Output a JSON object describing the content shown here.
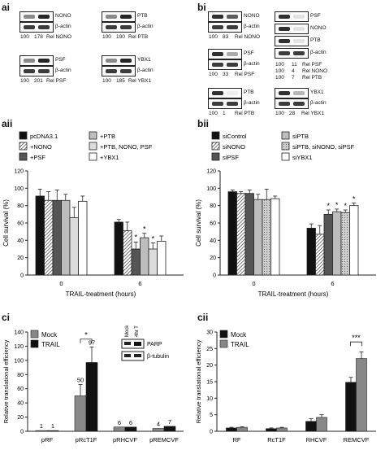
{
  "labels": {
    "ai": "ai",
    "bi": "bi",
    "aii": "aii",
    "bii": "bii",
    "ci": "ci",
    "cii": "cii"
  },
  "ai": {
    "blots": [
      {
        "rows": [
          "NONO",
          "β-actin"
        ],
        "rel": [
          "100",
          "178",
          "Rel NONO"
        ]
      },
      {
        "rows": [
          "PTB",
          "β-actin"
        ],
        "rel": [
          "100",
          "190",
          "Rel PTB"
        ]
      },
      {
        "rows": [
          "PSF",
          "β-actin"
        ],
        "rel": [
          "100",
          "201",
          "Rel PSF"
        ]
      },
      {
        "rows": [
          "YBX1",
          "β-actin"
        ],
        "rel": [
          "100",
          "185",
          "Rel YBX1"
        ]
      }
    ]
  },
  "bi": {
    "blots_left": [
      {
        "rows": [
          "NONO",
          "β-actin"
        ],
        "rel": [
          "100",
          "83",
          "Rel NONO"
        ]
      },
      {
        "rows": [
          "PSF",
          "β-actin"
        ],
        "rel": [
          "100",
          "33",
          "Rel PSF"
        ]
      },
      {
        "rows": [
          "PTB",
          "β-actin"
        ],
        "rel": [
          "100",
          "1",
          "Rel PTB"
        ]
      }
    ],
    "blot_right_rows": [
      "PSF",
      "NONO",
      "PTB",
      "β-actin"
    ],
    "blot_right_rel": [
      [
        "100",
        "11",
        "Rel PSF"
      ],
      [
        "100",
        "4",
        "Rel NONO"
      ],
      [
        "100",
        "7",
        "Rel PTB"
      ]
    ],
    "blot_ybx1": {
      "rows": [
        "YBX1",
        "β-actin"
      ],
      "rel": [
        "100",
        "28",
        "Rel YBX1"
      ]
    }
  },
  "chart_data": [
    {
      "panel": "aii",
      "type": "bar",
      "x": [
        "0",
        "6"
      ],
      "xlabel": "TRAIL-treatment (hours)",
      "ylabel": "Cell survival (%)",
      "ylim": [
        0,
        120
      ],
      "yticks": [
        "0",
        "20",
        "40",
        "60",
        "80",
        "100",
        "120"
      ],
      "legend": [
        "pcDNA3.1",
        "+NONO",
        "+PSF",
        "+PTB",
        "+PTB, NONO, PSF",
        "+YBX1"
      ],
      "series": [
        {
          "name": "pcDNA3.1",
          "values": [
            91,
            61
          ],
          "err": [
            8,
            3
          ]
        },
        {
          "name": "+NONO",
          "values": [
            86,
            51
          ],
          "err": [
            10,
            10
          ]
        },
        {
          "name": "+PSF",
          "values": [
            86,
            30
          ],
          "err": [
            12,
            8
          ]
        },
        {
          "name": "+PTB",
          "values": [
            86,
            43
          ],
          "err": [
            7,
            5
          ]
        },
        {
          "name": "+PTB, NONO, PSF",
          "values": [
            66,
            30
          ],
          "err": [
            12,
            7
          ]
        },
        {
          "name": "+YBX1",
          "values": [
            85,
            39
          ],
          "err": [
            6,
            6
          ]
        }
      ],
      "annotations": [
        "*",
        "*",
        "*"
      ]
    },
    {
      "panel": "bii",
      "type": "bar",
      "x": [
        "0",
        "6"
      ],
      "xlabel": "TRAIL-treatment (hours)",
      "ylabel": "Cell survival (%)",
      "ylim": [
        0,
        120
      ],
      "yticks": [
        "0",
        "20",
        "40",
        "60",
        "80",
        "100",
        "120"
      ],
      "legend": [
        "siControl",
        "siNONO",
        "siPSF",
        "siPTB",
        "siPTB, siNONO, siPSF",
        "siYBX1"
      ],
      "series": [
        {
          "name": "siControl",
          "values": [
            96,
            54
          ],
          "err": [
            2,
            5
          ]
        },
        {
          "name": "siNONO",
          "values": [
            94,
            47
          ],
          "err": [
            2,
            10
          ]
        },
        {
          "name": "siPSF",
          "values": [
            94,
            70
          ],
          "err": [
            4,
            5
          ]
        },
        {
          "name": "siPTB",
          "values": [
            87,
            73
          ],
          "err": [
            6,
            3
          ]
        },
        {
          "name": "siPTB, siNONO, siPSF",
          "values": [
            87,
            72
          ],
          "err": [
            12,
            3
          ]
        },
        {
          "name": "siYBX1",
          "values": [
            88,
            80
          ],
          "err": [
            3,
            3
          ]
        }
      ],
      "annotations": [
        "*",
        "*",
        "*",
        "*"
      ]
    },
    {
      "panel": "ci",
      "type": "bar",
      "categories": [
        "pRF",
        "pRcT1F",
        "pRHCVF",
        "pREMCVF"
      ],
      "ylabel": "Relative translational efficiency",
      "ylim": [
        0,
        140
      ],
      "yticks": [
        "0",
        "20",
        "40",
        "60",
        "80",
        "100",
        "120",
        "140"
      ],
      "series": [
        {
          "name": "Mock",
          "values": [
            1,
            50,
            6,
            4
          ],
          "err": [
            0,
            16,
            0,
            0
          ]
        },
        {
          "name": "TRAIL",
          "values": [
            1,
            97,
            6,
            7
          ],
          "err": [
            0,
            22,
            0,
            0
          ]
        }
      ],
      "data_labels": {
        "Mock": [
          "1",
          "50",
          "6",
          "4"
        ],
        "TRAIL": [
          "1",
          "97",
          "6",
          "7"
        ]
      },
      "sig": "*",
      "inset": {
        "cols": [
          "Mock",
          "4hr T"
        ],
        "rows": [
          "PARP",
          "β-tubulin"
        ]
      }
    },
    {
      "panel": "cii",
      "type": "bar",
      "categories": [
        "RF",
        "RcT1F",
        "RHCVF",
        "REMCVF"
      ],
      "ylabel": "Relative translational efficiency",
      "ylim": [
        0,
        30
      ],
      "yticks": [
        "0",
        "5",
        "10",
        "15",
        "20",
        "25",
        "30"
      ],
      "series": [
        {
          "name": "Mock",
          "values": [
            1,
            0.8,
            3,
            14.8
          ],
          "err": [
            0.2,
            0.2,
            0.8,
            1.5
          ]
        },
        {
          "name": "TRAIL",
          "values": [
            1.2,
            1,
            4.2,
            22
          ],
          "err": [
            0.2,
            0.2,
            0.8,
            2
          ]
        }
      ],
      "sig": "***"
    }
  ]
}
